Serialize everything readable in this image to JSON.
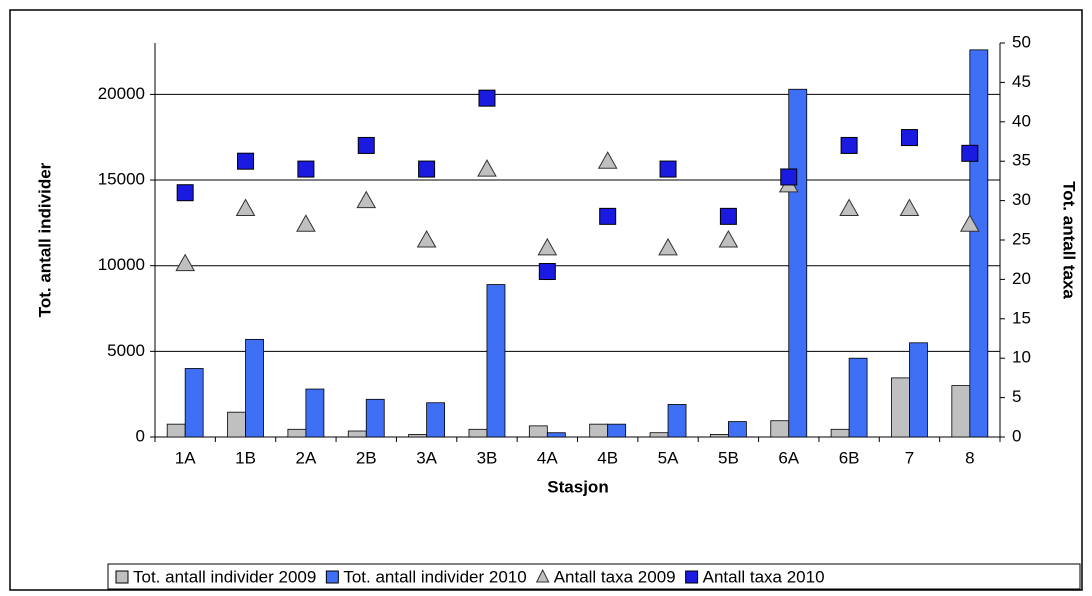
{
  "chart_data": {
    "type": "bar",
    "x_label": "Stasjon",
    "y_label": "Tot. antall individer",
    "y2_label": "Tot. antall taxa",
    "categories": [
      "1A",
      "1B",
      "2A",
      "2B",
      "3A",
      "3B",
      "4A",
      "4B",
      "5A",
      "5B",
      "6A",
      "6B",
      "7",
      "8"
    ],
    "series": [
      {
        "name": "Tot. antall individer 2009",
        "color": "#c0c0c0",
        "marker": "bar",
        "values": [
          750,
          1450,
          450,
          350,
          150,
          450,
          650,
          750,
          250,
          150,
          950,
          450,
          3450,
          3000
        ]
      },
      {
        "name": "Tot. antall individer 2010",
        "color": "#3f6ff5",
        "marker": "bar",
        "values": [
          4000,
          5700,
          2800,
          2200,
          2000,
          8900,
          250,
          750,
          1900,
          900,
          20300,
          4600,
          5500,
          22600
        ]
      },
      {
        "name": "Antall taxa 2009",
        "color": "#c0c0c0",
        "marker": "triangle",
        "axis": "y2",
        "values": [
          22,
          29,
          27,
          30,
          25,
          34,
          24,
          35,
          24,
          25,
          32,
          29,
          29,
          27
        ]
      },
      {
        "name": "Antall taxa 2010",
        "color": "#1a1ae0",
        "marker": "square",
        "axis": "y2",
        "values": [
          31,
          35,
          34,
          37,
          34,
          43,
          21,
          28,
          34,
          28,
          33,
          37,
          38,
          36
        ]
      }
    ],
    "ylim": [
      0,
      23000
    ],
    "yticks": [
      0,
      5000,
      10000,
      15000,
      20000
    ],
    "y2lim": [
      0,
      50
    ],
    "y2ticks": [
      0,
      5,
      10,
      15,
      20,
      25,
      30,
      35,
      40,
      45,
      50
    ],
    "grid": true,
    "legend": "bottom"
  }
}
